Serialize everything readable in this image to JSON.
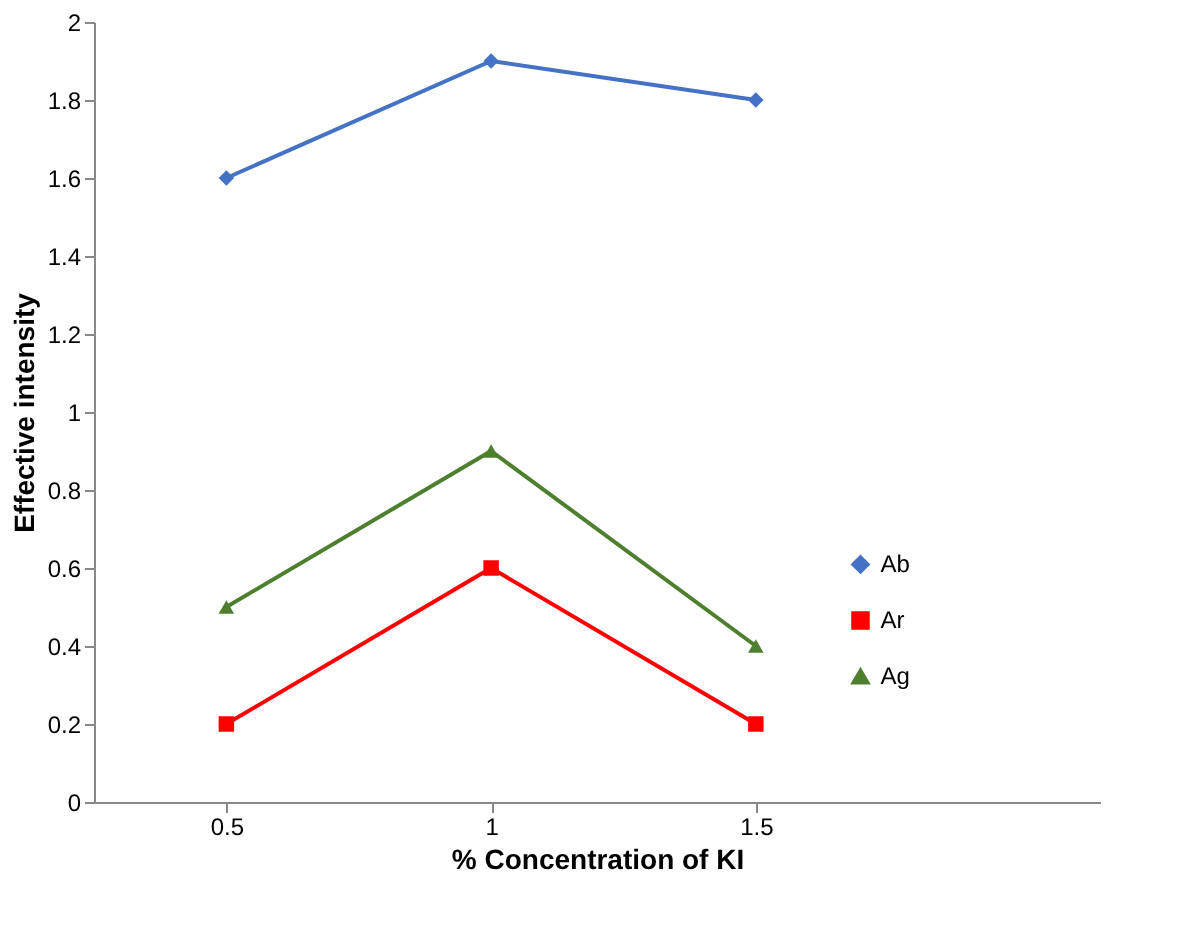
{
  "chart_data": {
    "type": "line",
    "xlabel": "% Concentration of KI",
    "ylabel": "Effective intensity",
    "x": [
      0.5,
      1,
      1.5
    ],
    "series": [
      {
        "name": "Ab",
        "color": "#4472c4",
        "marker": "diamond",
        "values": [
          1.6,
          1.9,
          1.8
        ]
      },
      {
        "name": "Ar",
        "color": "#ff0000",
        "marker": "square",
        "values": [
          0.2,
          0.6,
          0.2
        ]
      },
      {
        "name": "Ag",
        "color": "#4e7f2e",
        "marker": "triangle",
        "values": [
          0.5,
          0.9,
          0.4
        ]
      }
    ],
    "xlim": [
      0.25,
      2.15
    ],
    "xticks": [
      0.5,
      1,
      1.5
    ],
    "ylim": [
      0,
      2
    ],
    "yticks": [
      0,
      0.2,
      0.4,
      0.6,
      0.8,
      1,
      1.2,
      1.4,
      1.6,
      1.8,
      2
    ],
    "grid": false,
    "legend": "right",
    "line_style": "solid"
  }
}
